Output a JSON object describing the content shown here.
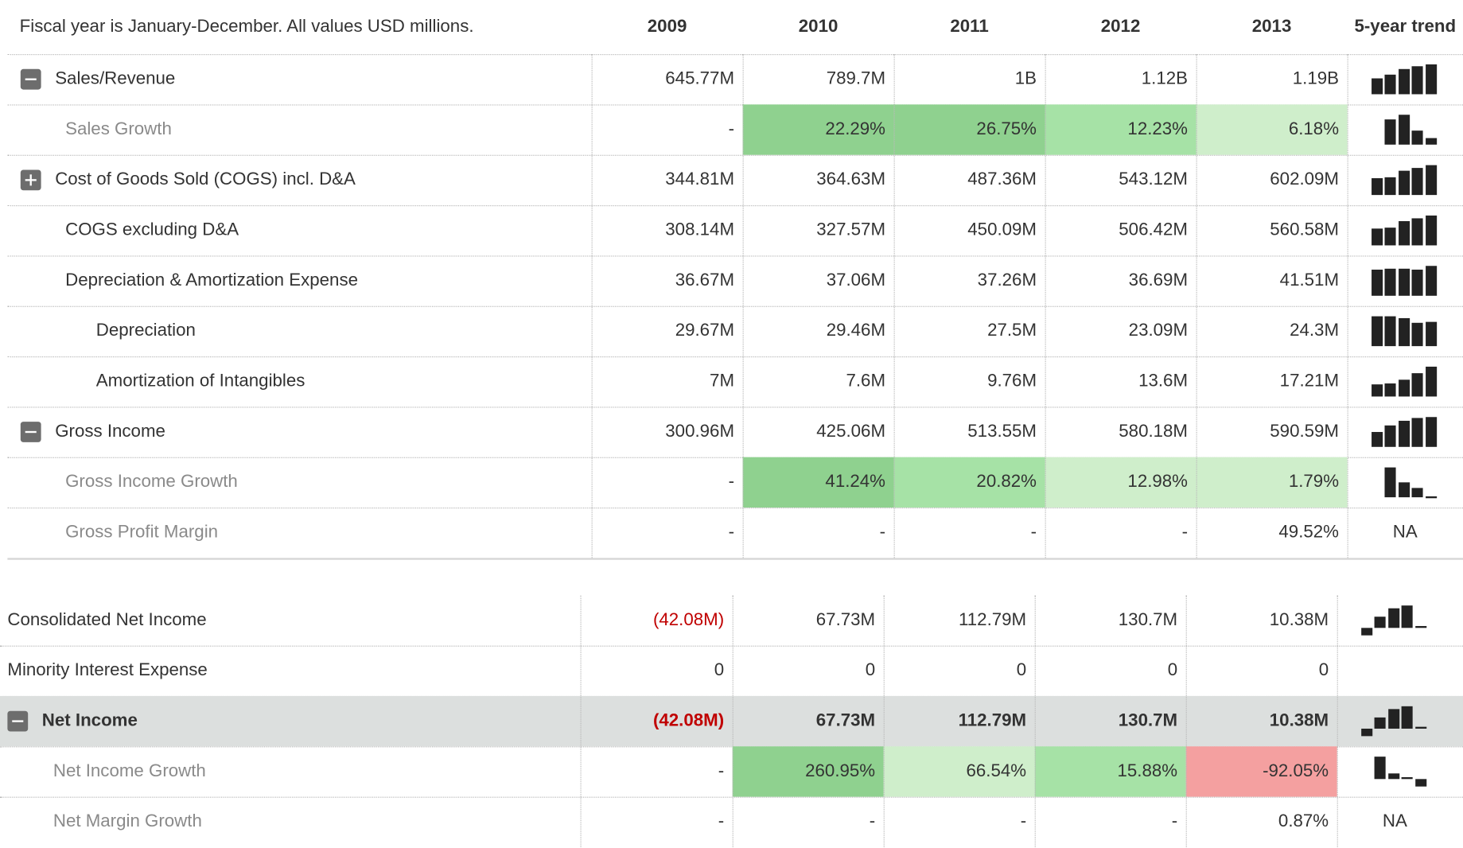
{
  "header": {
    "note": "Fiscal year is January-December. All values USD millions.",
    "years": [
      "2009",
      "2010",
      "2011",
      "2012",
      "2013"
    ],
    "trend": "5-year trend"
  },
  "table1": {
    "rows": [
      {
        "label": "Sales/Revenue",
        "toggle": "minus",
        "indent": 0,
        "values": [
          "645.77M",
          "789.7M",
          "1B",
          "1.12B",
          "1.19B"
        ],
        "sparkline": true
      },
      {
        "label": "Sales Growth",
        "indent": 1,
        "muted": true,
        "values": [
          "-",
          "22.29%",
          "26.75%",
          "12.23%",
          "6.18%"
        ],
        "colors": [
          null,
          "#8fd18f",
          "#8fd18f",
          "#a6e2a6",
          "#cfeecb"
        ],
        "sparkline": true
      },
      {
        "label": "Cost of Goods Sold (COGS) incl. D&A",
        "toggle": "plus",
        "indent": 0,
        "values": [
          "344.81M",
          "364.63M",
          "487.36M",
          "543.12M",
          "602.09M"
        ],
        "sparkline": true
      },
      {
        "label": "COGS excluding D&A",
        "indent": 1,
        "values": [
          "308.14M",
          "327.57M",
          "450.09M",
          "506.42M",
          "560.58M"
        ],
        "sparkline": true
      },
      {
        "label": "Depreciation & Amortization Expense",
        "indent": 1,
        "values": [
          "36.67M",
          "37.06M",
          "37.26M",
          "36.69M",
          "41.51M"
        ],
        "sparkline": true
      },
      {
        "label": "Depreciation",
        "indent": 2,
        "values": [
          "29.67M",
          "29.46M",
          "27.5M",
          "23.09M",
          "24.3M"
        ],
        "sparkline": true
      },
      {
        "label": "Amortization of Intangibles",
        "indent": 2,
        "values": [
          "7M",
          "7.6M",
          "9.76M",
          "13.6M",
          "17.21M"
        ],
        "sparkline": true
      },
      {
        "label": "Gross Income",
        "toggle": "minus",
        "indent": 0,
        "values": [
          "300.96M",
          "425.06M",
          "513.55M",
          "580.18M",
          "590.59M"
        ],
        "sparkline": true
      },
      {
        "label": "Gross Income Growth",
        "indent": 1,
        "muted": true,
        "values": [
          "-",
          "41.24%",
          "20.82%",
          "12.98%",
          "1.79%"
        ],
        "colors": [
          null,
          "#8fd18f",
          "#a6e2a6",
          "#cfeecb",
          "#cfeecb"
        ],
        "sparkline": true
      },
      {
        "label": "Gross Profit Margin",
        "indent": 1,
        "muted": true,
        "values": [
          "-",
          "-",
          "-",
          "-",
          "49.52%"
        ],
        "trend": "NA"
      }
    ]
  },
  "table2": {
    "rows": [
      {
        "label": "Consolidated Net Income",
        "indent": 0,
        "values": [
          "(42.08M)",
          "67.73M",
          "112.79M",
          "130.7M",
          "10.38M"
        ],
        "sparkline": true
      },
      {
        "label": "Minority Interest Expense",
        "indent": 0,
        "values": [
          "0",
          "0",
          "0",
          "0",
          "0"
        ]
      },
      {
        "label": "Net Income",
        "toggle": "minus",
        "indent": 0,
        "bold": true,
        "background": "#dcdfde",
        "values": [
          "(42.08M)",
          "67.73M",
          "112.79M",
          "130.7M",
          "10.38M"
        ],
        "sparkline": true
      },
      {
        "label": "Net Income Growth",
        "indent": 1,
        "muted": true,
        "values": [
          "-",
          "260.95%",
          "66.54%",
          "15.88%",
          "-92.05%"
        ],
        "colors": [
          null,
          "#8fd18f",
          "#cfeecb",
          "#a6e2a6",
          "#f4a0a0"
        ],
        "sparkline": true
      },
      {
        "label": "Net Margin Growth",
        "indent": 1,
        "muted": true,
        "values": [
          "-",
          "-",
          "-",
          "-",
          "0.87%"
        ],
        "trend": "NA"
      }
    ]
  }
}
